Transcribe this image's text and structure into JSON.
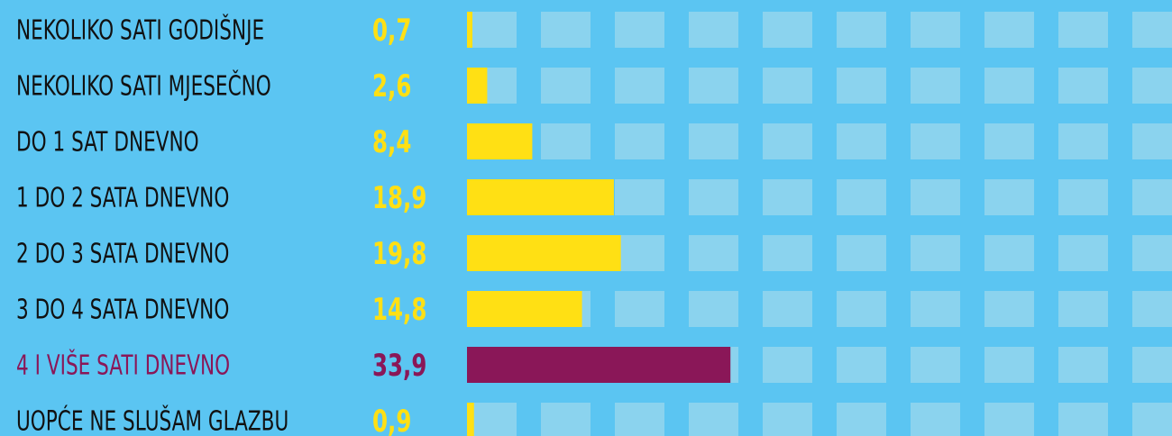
{
  "chart_data": {
    "type": "bar",
    "categories": [
      "NEKOLIKO SATI GODIŠNJE",
      "NEKOLIKO SATI MJESEČNO",
      "DO 1 SAT DNEVNO",
      "1 DO 2 SATA DNEVNO",
      "2 DO 3 SATA DNEVNO",
      "3 DO 4 SATA DNEVNO",
      "4 I VIŠE SATI DNEVNO",
      "UOPĆE NE SLUŠAM GLAZBU"
    ],
    "values": [
      0.7,
      2.6,
      8.4,
      18.9,
      19.8,
      14.8,
      33.9,
      0.9
    ],
    "value_labels": [
      "0,7",
      "2,6",
      "8,4",
      "18,9",
      "19,8",
      "14,8",
      "33,9",
      "0,9"
    ],
    "color": "#ffe014",
    "colors": [
      "#ffe014",
      "#ffe014",
      "#ffe014",
      "#ffe014",
      "#ffe014",
      "#ffe014",
      "#8a1758",
      "#ffe014"
    ]
  }
}
